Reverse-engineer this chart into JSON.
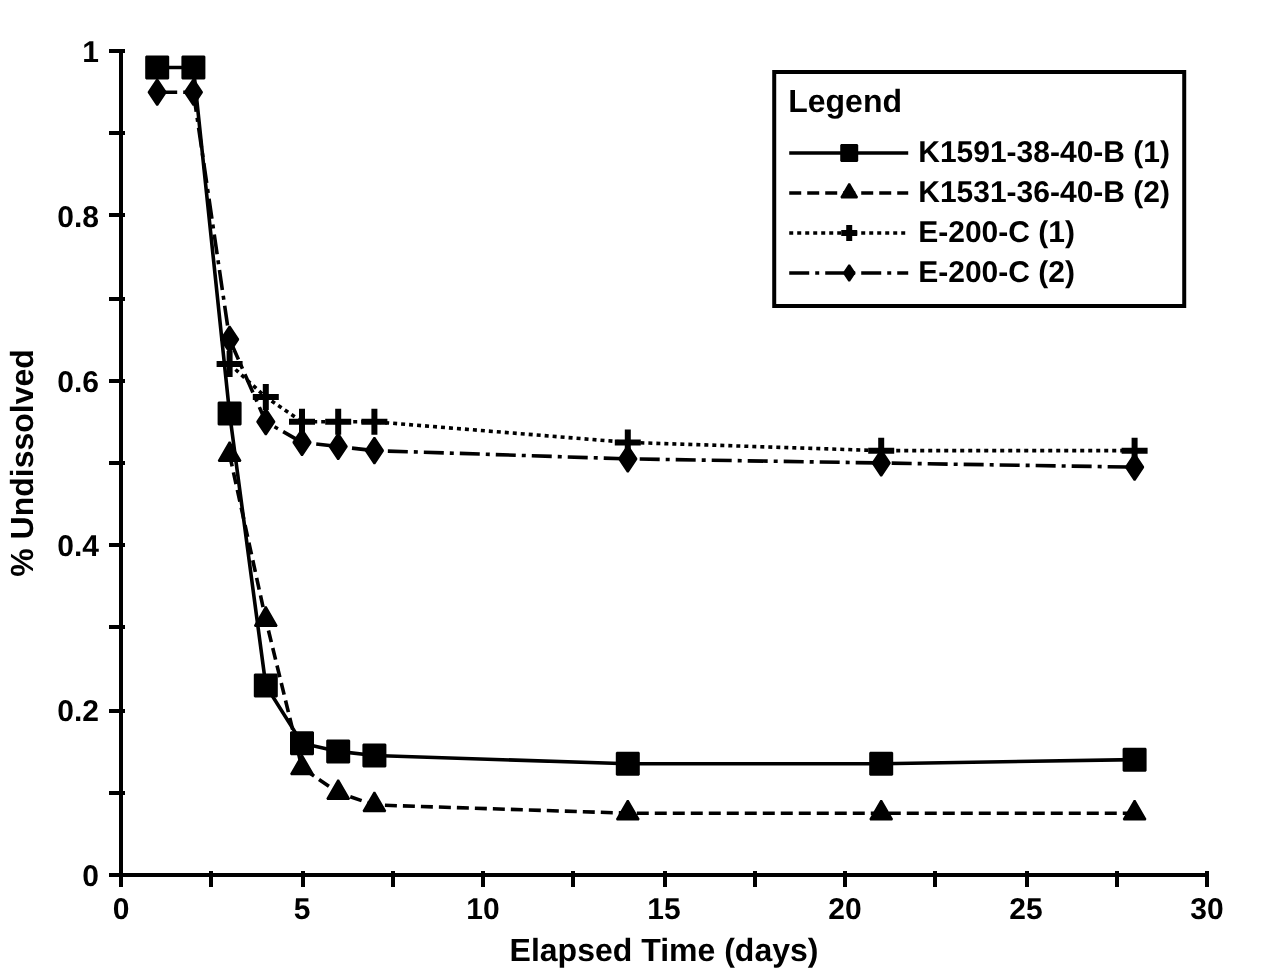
{
  "chart_data": {
    "type": "line",
    "xlabel": "Elapsed Time (days)",
    "ylabel": "% Undissolved",
    "legend_title": "Legend",
    "legend": "top right",
    "grid": false,
    "x": [
      1,
      2,
      3,
      4,
      5,
      6,
      7,
      14,
      21,
      28
    ],
    "xlim": [
      0,
      30
    ],
    "xticks": [
      0,
      {
        "value": 2.5,
        "label": null
      },
      5,
      {
        "value": 7.5,
        "label": null
      },
      10,
      {
        "value": 12.5,
        "label": null
      },
      15,
      {
        "value": 17.5,
        "label": null
      },
      20,
      {
        "value": 22.5,
        "label": null
      },
      25,
      {
        "value": 27.5,
        "label": null
      },
      30
    ],
    "ylim": [
      0,
      1
    ],
    "yticks": [
      0,
      {
        "value": 0.1,
        "label": null
      },
      0.2,
      {
        "value": 0.3,
        "label": null
      },
      0.4,
      {
        "value": 0.5,
        "label": null
      },
      0.6,
      {
        "value": 0.7,
        "label": null
      },
      0.8,
      {
        "value": 0.9,
        "label": null
      },
      1
    ],
    "series": [
      {
        "name": "K1591-38-40-B (1)",
        "color": "#000000",
        "marker": "square",
        "line_style": "solid",
        "values": [
          0.98,
          0.98,
          0.56,
          0.23,
          0.16,
          0.15,
          0.145,
          0.135,
          0.135,
          0.14
        ]
      },
      {
        "name": "K1531-36-40-B (2)",
        "color": "#000000",
        "marker": "triangle",
        "line_style": "dashed",
        "values": [
          null,
          null,
          0.51,
          0.31,
          0.13,
          0.1,
          0.085,
          0.075,
          0.075,
          0.075
        ]
      },
      {
        "name": "E-200-C (1)",
        "color": "#000000",
        "marker": "cross",
        "line_style": "dotted",
        "values": [
          null,
          null,
          0.62,
          0.58,
          0.55,
          0.55,
          0.55,
          0.525,
          0.515,
          0.515
        ]
      },
      {
        "name": "E-200-C (2)",
        "color": "#000000",
        "marker": "diamond",
        "line_style": "dashdot",
        "values": [
          0.95,
          0.95,
          0.65,
          0.55,
          0.525,
          0.52,
          0.515,
          0.505,
          0.5,
          0.495
        ]
      }
    ]
  }
}
